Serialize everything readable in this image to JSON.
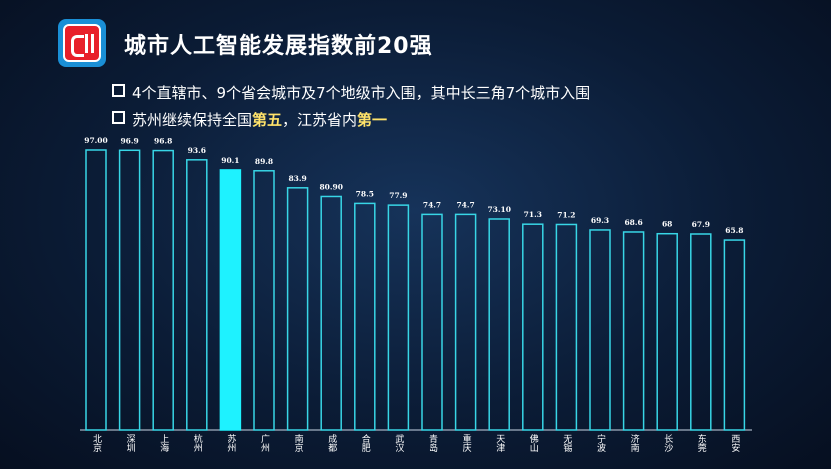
{
  "chart_data": {
    "type": "bar",
    "title": "城市人工智能发展指数前20强",
    "notes": [
      "4个直辖市、9个省会城市及7个地级市入围，其中长三角7个城市入围",
      [
        "苏州继续保持全国",
        "第五",
        "，江苏省内",
        "第一"
      ]
    ],
    "categories": [
      "北京",
      "深圳",
      "上海",
      "杭州",
      "苏州",
      "广州",
      "南京",
      "成都",
      "合肥",
      "武汉",
      "青岛",
      "重庆",
      "天津",
      "佛山",
      "无锡",
      "宁波",
      "济南",
      "长沙",
      "东莞",
      "西安"
    ],
    "values": [
      97,
      96.9,
      96.8,
      93.6,
      90.1,
      89.8,
      83.9,
      80.9,
      78.5,
      77.9,
      74.7,
      74.7,
      73.1,
      71.3,
      71.2,
      69.3,
      68.6,
      68,
      67.9,
      65.8
    ],
    "value_labels": [
      "97.00",
      "96.9",
      "96.8",
      "93.6",
      "90.1",
      "89.8",
      "83.9",
      "80.90",
      "78.5",
      "77.9",
      "74.7",
      "74.7",
      "73.10",
      "71.3",
      "71.2",
      "69.3",
      "68.6",
      "68",
      "67.9",
      "65.8"
    ],
    "color": "#38d6e6",
    "highlight": "苏州",
    "highlight_color": "#1ef2ff"
  }
}
